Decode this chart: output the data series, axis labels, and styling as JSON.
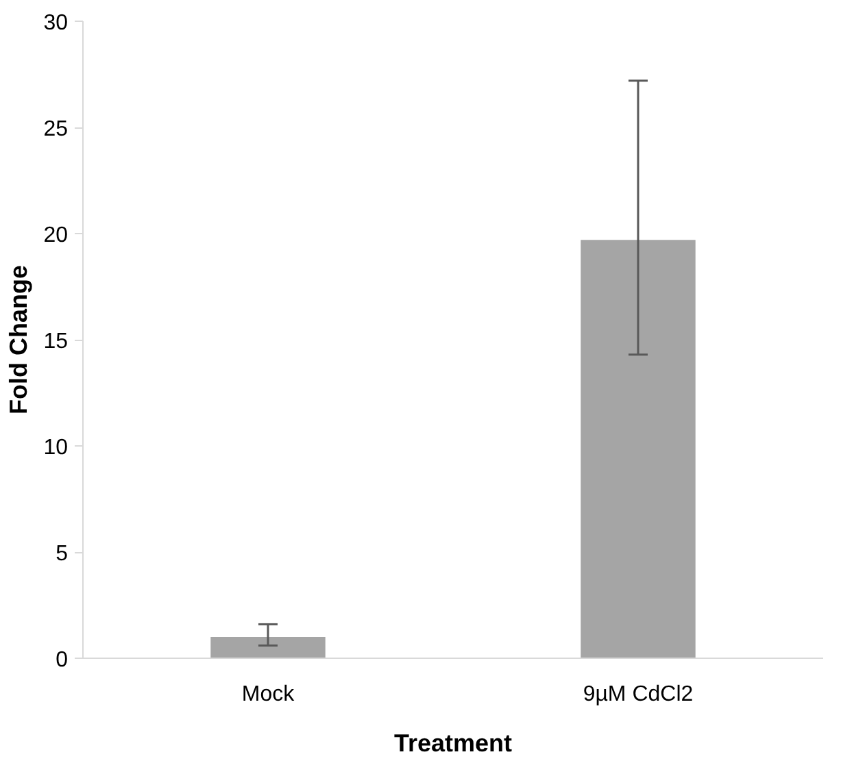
{
  "chart_data": {
    "type": "bar",
    "xlabel": "Treatment",
    "ylabel": "Fold Change",
    "categories": [
      "Mock",
      "9µM CdCl2"
    ],
    "values": [
      1.0,
      19.7
    ],
    "errors": [
      [
        0.6,
        1.6
      ],
      [
        14.3,
        27.2
      ]
    ],
    "color": "#a5a5a5",
    "ylim": [
      0,
      30
    ],
    "yticks": [
      0,
      5,
      10,
      15,
      20,
      25,
      30
    ],
    "grid": false
  }
}
